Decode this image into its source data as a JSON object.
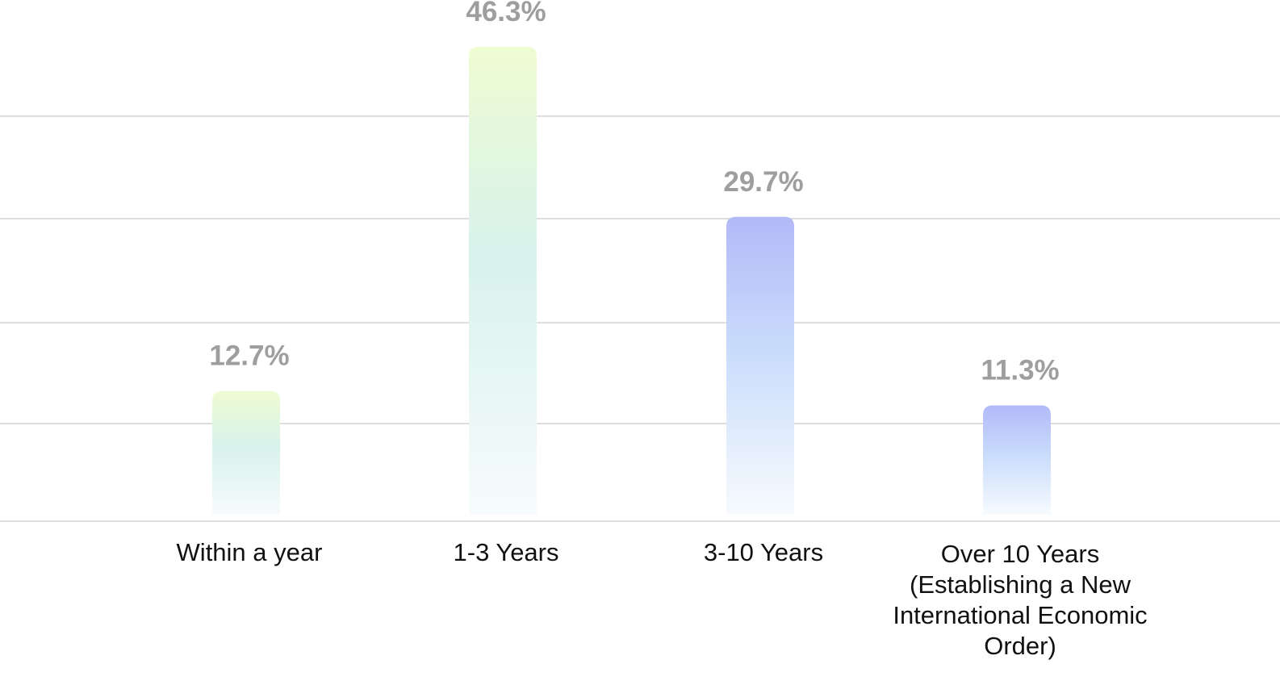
{
  "chart_data": {
    "type": "bar",
    "title": "",
    "xlabel": "",
    "ylabel": "",
    "categories": [
      "Within a year",
      "1-3 Years",
      "3-10 Years",
      "Over 10 Years (Establishing a New International Economic Order)"
    ],
    "values": [
      12.7,
      46.3,
      29.7,
      11.3
    ],
    "value_labels": [
      "12.7%",
      "46.3%",
      "29.7%",
      "11.3%"
    ],
    "ylim": [
      0,
      50
    ],
    "grid": true,
    "legend": "none",
    "colors": {
      "gradient_a_top": "#eefcd2",
      "gradient_a_mid": "#d8f2ec",
      "gradient_b_top": "#b3b9f8",
      "gradient_b_mid": "#c9dcfb",
      "gradient_bottom": "#f7fbfe",
      "value_label": "#9e9e9e",
      "category_label": "#111111",
      "grid": "#dedede"
    }
  }
}
